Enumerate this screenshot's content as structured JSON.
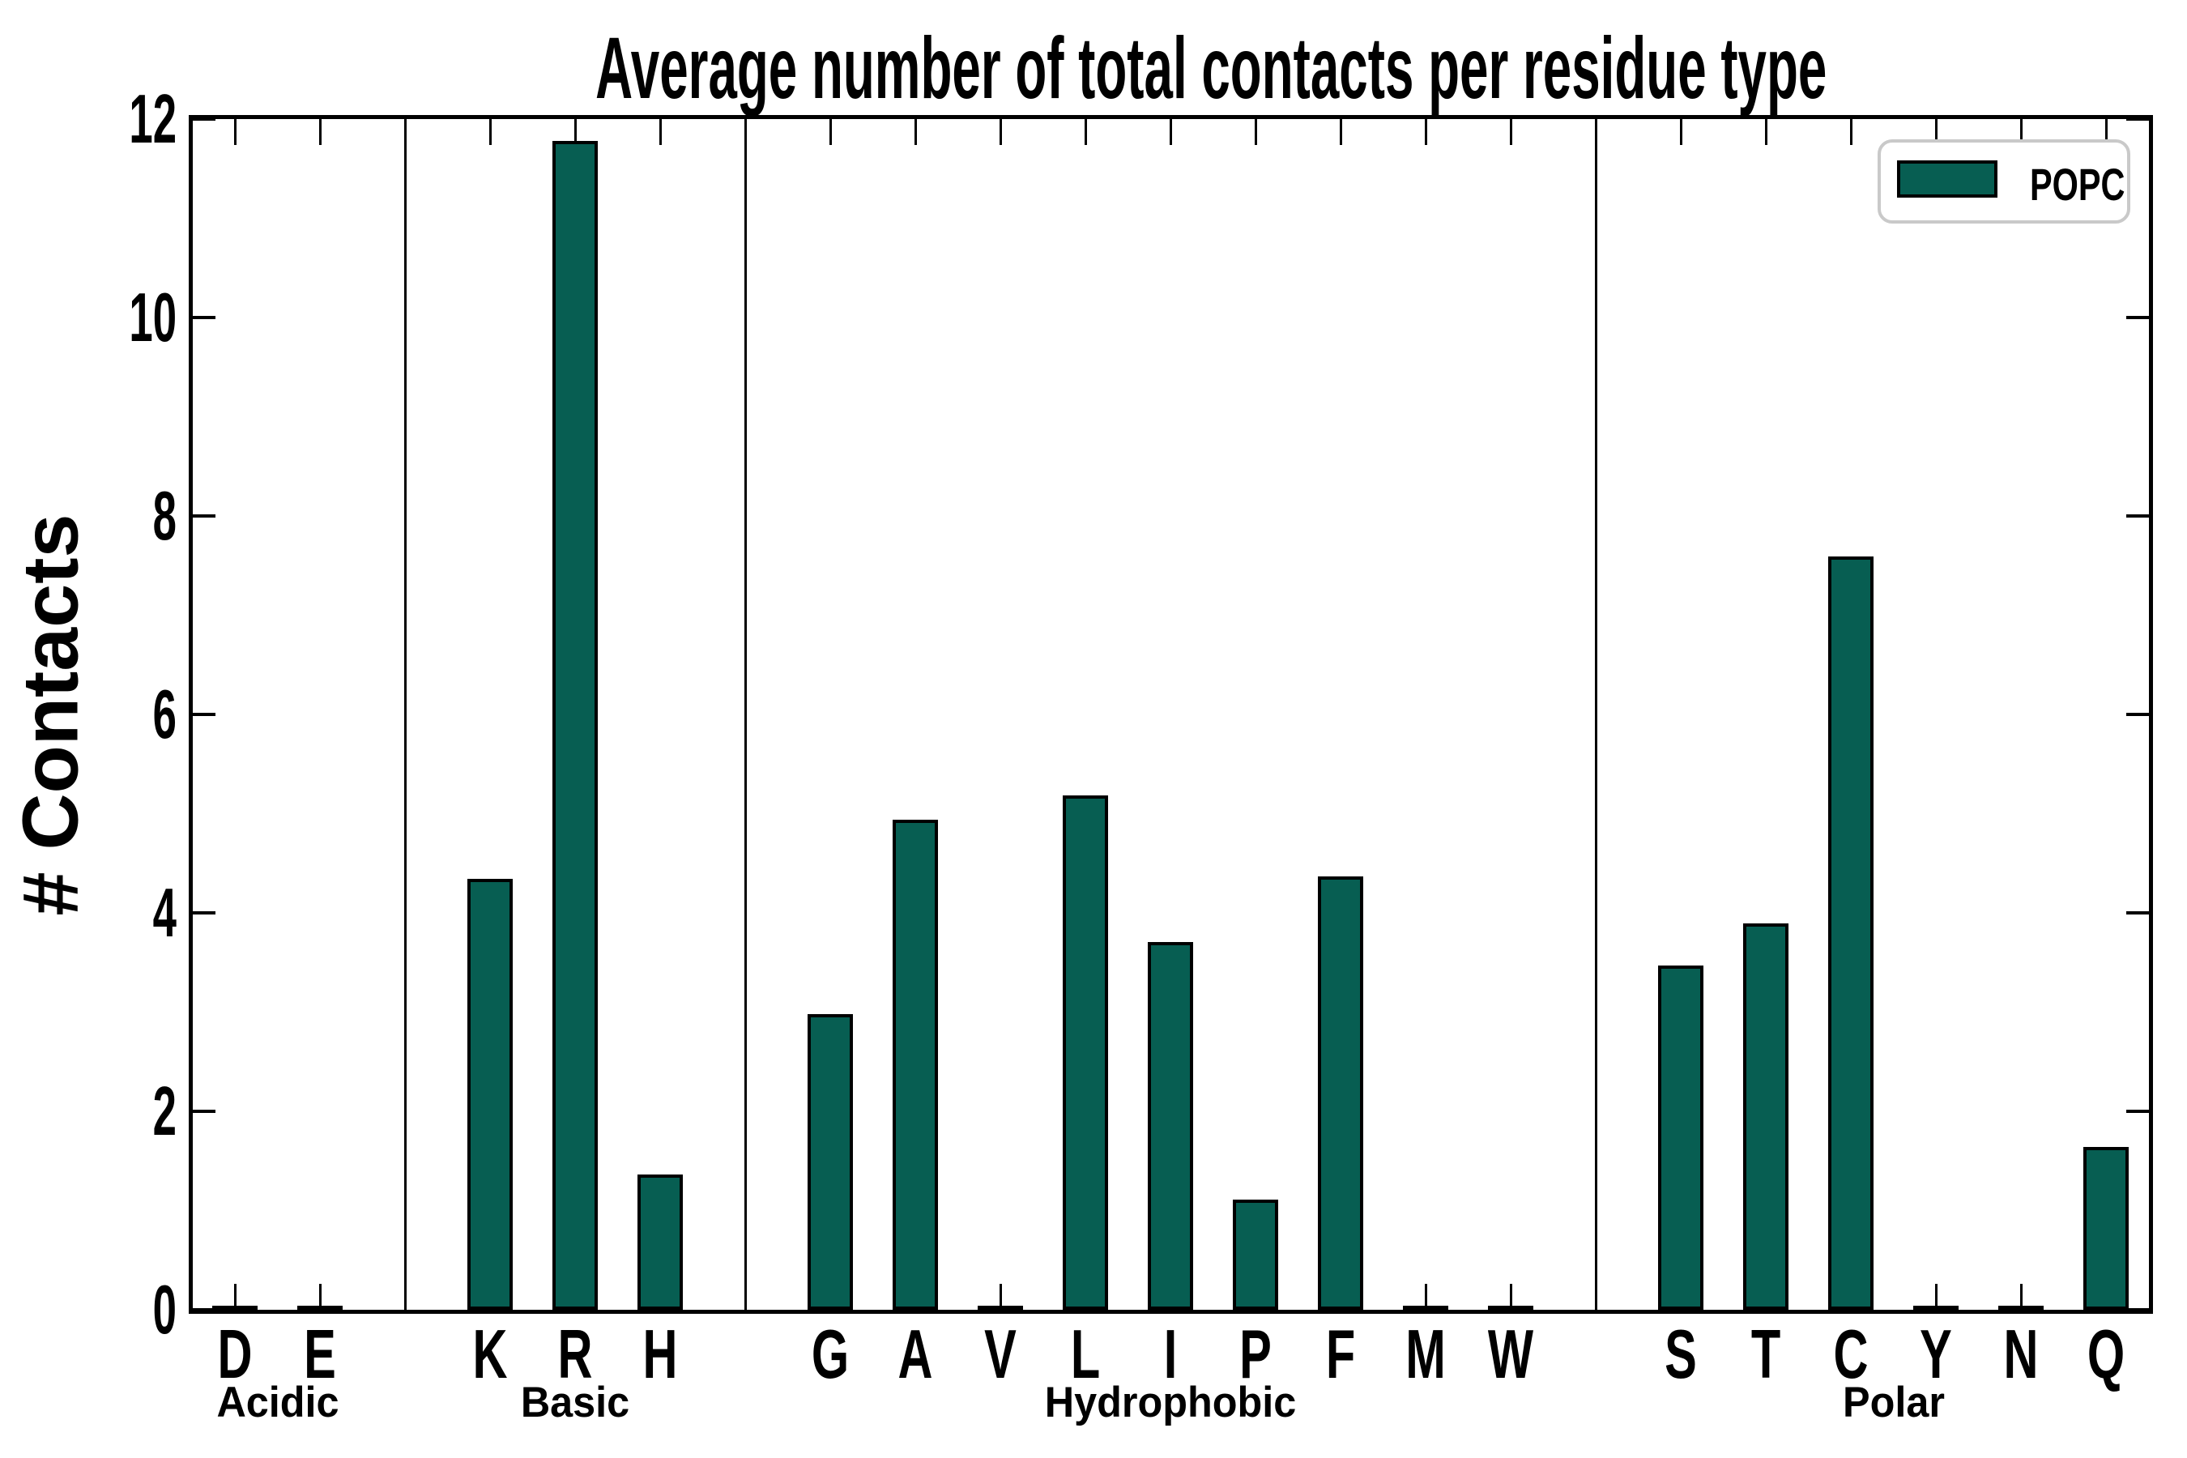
{
  "figure": {
    "colors": {
      "bar_fill": "#075e52",
      "bar_edge": "#000000",
      "axis": "#000000",
      "legend_border": "#c9c9c9",
      "background": "#ffffff"
    }
  },
  "chart_data": {
    "type": "bar",
    "title": "Average number of total contacts per residue type",
    "xlabel": "",
    "ylabel": "# Contacts",
    "ylim": [
      0,
      12
    ],
    "yticks": [
      0,
      2,
      4,
      6,
      8,
      10,
      12
    ],
    "grid": false,
    "legend": [
      "POPC"
    ],
    "legend_position": "upper right",
    "group_dividers": true,
    "groups": [
      {
        "label": "Acidic",
        "categories": [
          "D",
          "E"
        ],
        "values": [
          0,
          0
        ]
      },
      {
        "label": "Basic",
        "categories": [
          "K",
          "R",
          "H"
        ],
        "values": [
          4.34,
          11.78,
          1.36
        ]
      },
      {
        "label": "Hydrophobic",
        "categories": [
          "G",
          "A",
          "V",
          "L",
          "I",
          "P",
          "F",
          "M",
          "W"
        ],
        "values": [
          2.98,
          4.94,
          0,
          5.18,
          3.71,
          1.11,
          4.37,
          0,
          0
        ]
      },
      {
        "label": "Polar",
        "categories": [
          "S",
          "T",
          "C",
          "Y",
          "N",
          "Q"
        ],
        "values": [
          3.47,
          3.89,
          7.59,
          0,
          0,
          1.64
        ]
      }
    ]
  }
}
